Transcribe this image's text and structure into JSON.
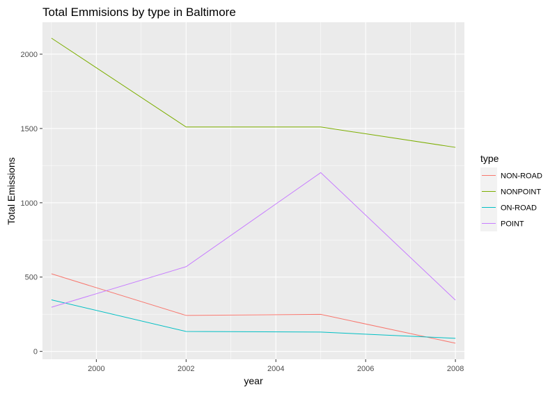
{
  "chart_data": {
    "type": "line",
    "title": "Total Emmisions by type in Baltimore",
    "xlabel": "year",
    "ylabel": "Total Emissions",
    "x": [
      1999,
      2002,
      2005,
      2008
    ],
    "xlim": [
      1998.8,
      2008.2
    ],
    "ylim": [
      -53,
      2215
    ],
    "x_ticks": [
      2000,
      2002,
      2004,
      2006,
      2008
    ],
    "x_tick_labels": [
      "2000",
      "2002",
      "2004",
      "2006",
      "2008"
    ],
    "y_ticks": [
      0,
      500,
      1000,
      1500,
      2000
    ],
    "y_tick_labels": [
      "0",
      "500",
      "1000",
      "1500",
      "2000"
    ],
    "grid": true,
    "legend": {
      "title": "type",
      "placement": "right"
    },
    "series": [
      {
        "name": "NON-ROAD",
        "values": [
          522,
          242,
          249,
          55
        ],
        "color": "#F8766D"
      },
      {
        "name": "NONPOINT",
        "values": [
          2108,
          1510,
          1510,
          1373
        ],
        "color": "#7CAE00"
      },
      {
        "name": "ON-ROAD",
        "values": [
          347,
          134,
          130,
          88
        ],
        "color": "#00BFC4"
      },
      {
        "name": "POINT",
        "values": [
          297,
          570,
          1203,
          345
        ],
        "color": "#C77CFF"
      }
    ],
    "colors": {
      "panel_background": "#EBEBEB",
      "grid_major": "#FFFFFF",
      "legend_key_background": "#F2F2F2"
    }
  }
}
